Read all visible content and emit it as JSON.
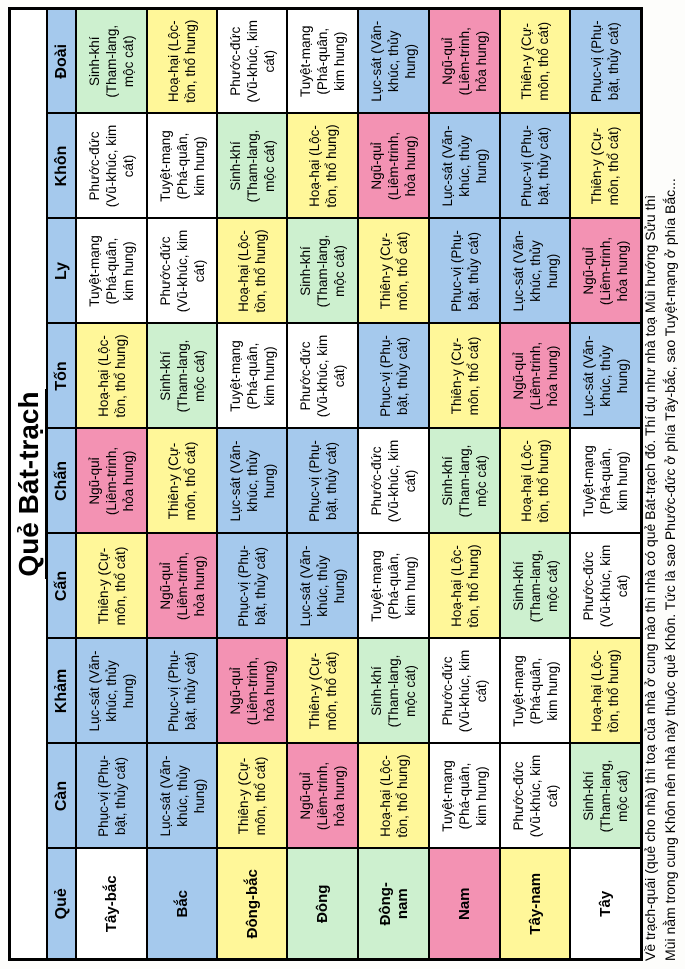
{
  "title": "Quẻ Bát-trạch",
  "corner_label": "Quẻ",
  "colors": {
    "header_blue": "#a5c9ed",
    "moc_green": "#cdf0cf",
    "tho_yellow": "#fff799",
    "thuy_blue": "#a5c9ed",
    "hoa_pink": "#f392b3",
    "kim_white": "#ffffff",
    "border_black": "#000000"
  },
  "que_headers": [
    "Càn",
    "Khảm",
    "Cấn",
    "Chấn",
    "Tốn",
    "Ly",
    "Khôn",
    "Đoài"
  ],
  "directions": [
    {
      "label": "Tây-bắc",
      "bg": "#ffffff"
    },
    {
      "label": "Bắc",
      "bg": "#a5c9ed"
    },
    {
      "label": "Đông-bắc",
      "bg": "#fff799"
    },
    {
      "label": "Đông",
      "bg": "#cdf0cf"
    },
    {
      "label": "Đông-\nnam",
      "bg": "#cdf0cf"
    },
    {
      "label": "Nam",
      "bg": "#f392b3"
    },
    {
      "label": "Tây-nam",
      "bg": "#fff799"
    },
    {
      "label": "Tây",
      "bg": "#ffffff"
    }
  ],
  "stars": {
    "SK": {
      "label": "Sinh-khí (Tham-lang, mộc cát)",
      "bg": "#cdf0cf"
    },
    "TY": {
      "label": "Thiên-y (Cự-môn, thổ cát)",
      "bg": "#fff799"
    },
    "PD": {
      "label": "Phước-đức (Vũ-khúc, kim cát)",
      "bg": "#ffffff"
    },
    "PV": {
      "label": "Phục-vị (Phụ-bật, thủy cát)",
      "bg": "#a5c9ed"
    },
    "HH": {
      "label": "Hoạ-hại (Lộc-tồn, thổ hung)",
      "bg": "#fff799"
    },
    "LS": {
      "label": "Lục-sát (Văn-khúc, thủy hung)",
      "bg": "#a5c9ed"
    },
    "NQ": {
      "label": "Ngũ-quỉ (Liêm-trinh, hỏa hung)",
      "bg": "#f392b3"
    },
    "TM": {
      "label": "Tuyệt-mạng (Phá-quân, kim hung)",
      "bg": "#ffffff"
    }
  },
  "grid": [
    [
      "PV",
      "LS",
      "TY",
      "NQ",
      "HH",
      "TM",
      "PD",
      "SK"
    ],
    [
      "LS",
      "PV",
      "NQ",
      "TY",
      "SK",
      "PD",
      "TM",
      "HH"
    ],
    [
      "TY",
      "NQ",
      "PV",
      "LS",
      "TM",
      "HH",
      "SK",
      "PD"
    ],
    [
      "NQ",
      "TY",
      "LS",
      "PV",
      "PD",
      "SK",
      "HH",
      "TM"
    ],
    [
      "HH",
      "SK",
      "TM",
      "PD",
      "PV",
      "TY",
      "NQ",
      "LS"
    ],
    [
      "TM",
      "PD",
      "HH",
      "SK",
      "TY",
      "PV",
      "LS",
      "NQ"
    ],
    [
      "PD",
      "TM",
      "SK",
      "HH",
      "NQ",
      "LS",
      "PV",
      "TY"
    ],
    [
      "SK",
      "HH",
      "PD",
      "TM",
      "LS",
      "NQ",
      "TY",
      "PV"
    ]
  ],
  "note_lines": [
    "Về trạch-quái (quẻ cho nhà) thì toạ của nhà ở cung nào thì nhà có quẻ Bát-trạch đó. Thí dụ như nhà toạ Mùi hướng Sửu thì",
    "Mùi nằm trong cung Khôn nên nhà này thuộc quẻ Khôn. Tức là sao Phước-đức ở phía Tây-bắc, sao Tuyệt-mạng ở phía Bắc..."
  ]
}
